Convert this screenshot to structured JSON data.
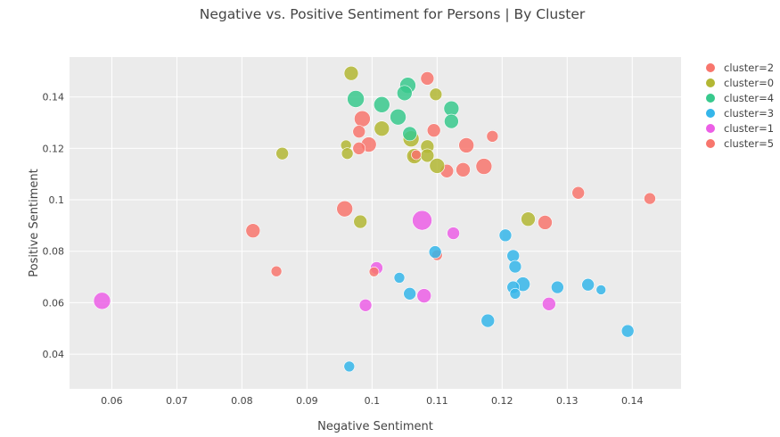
{
  "chart_data": {
    "type": "scatter",
    "title": "Negative vs. Positive Sentiment for Persons | By Cluster",
    "xlabel": "Negative Sentiment",
    "ylabel": "Positive Sentiment",
    "xlim": [
      0.0535,
      0.1475
    ],
    "ylim": [
      0.0265,
      0.1555
    ],
    "x_ticks": [
      0.06,
      0.07,
      0.08,
      0.09,
      0.1,
      0.11,
      0.12,
      0.13,
      0.14
    ],
    "x_tick_labels": [
      "0.06",
      "0.07",
      "0.08",
      "0.09",
      "0.1",
      "0.11",
      "0.12",
      "0.13",
      "0.14"
    ],
    "y_ticks": [
      0.04,
      0.06,
      0.08,
      0.1,
      0.12,
      0.14
    ],
    "y_tick_labels": [
      "0.04",
      "0.06",
      "0.08",
      "0.1",
      "0.12",
      "0.14"
    ],
    "grid": true,
    "legend_position": "right",
    "series": [
      {
        "name": "cluster=2",
        "color": "#f8766d",
        "points": [
          {
            "x": 0.1085,
            "y": 0.1472,
            "size": 15
          },
          {
            "x": 0.0985,
            "y": 0.1315,
            "size": 18
          },
          {
            "x": 0.098,
            "y": 0.1265,
            "size": 14
          },
          {
            "x": 0.0995,
            "y": 0.1215,
            "size": 17
          },
          {
            "x": 0.098,
            "y": 0.12,
            "size": 14
          },
          {
            "x": 0.1095,
            "y": 0.127,
            "size": 15
          },
          {
            "x": 0.1185,
            "y": 0.1247,
            "size": 13
          },
          {
            "x": 0.1145,
            "y": 0.1212,
            "size": 17
          },
          {
            "x": 0.1115,
            "y": 0.1112,
            "size": 15
          },
          {
            "x": 0.114,
            "y": 0.1117,
            "size": 16
          },
          {
            "x": 0.1172,
            "y": 0.113,
            "size": 18
          },
          {
            "x": 0.1065,
            "y": 0.117,
            "size": 13
          },
          {
            "x": 0.0958,
            "y": 0.0965,
            "size": 18
          },
          {
            "x": 0.0817,
            "y": 0.088,
            "size": 16
          },
          {
            "x": 0.1317,
            "y": 0.1027,
            "size": 14
          },
          {
            "x": 0.1427,
            "y": 0.1005,
            "size": 13
          },
          {
            "x": 0.1266,
            "y": 0.0912,
            "size": 16
          },
          {
            "x": 0.11,
            "y": 0.0785,
            "size": 12
          },
          {
            "x": 0.0853,
            "y": 0.0722,
            "size": 12
          }
        ]
      },
      {
        "name": "cluster=0",
        "color": "#b3b734",
        "points": [
          {
            "x": 0.0968,
            "y": 0.1492,
            "size": 16
          },
          {
            "x": 0.1098,
            "y": 0.141,
            "size": 14
          },
          {
            "x": 0.1015,
            "y": 0.1277,
            "size": 17
          },
          {
            "x": 0.106,
            "y": 0.1237,
            "size": 18
          },
          {
            "x": 0.1085,
            "y": 0.1207,
            "size": 15
          },
          {
            "x": 0.1065,
            "y": 0.117,
            "size": 17
          },
          {
            "x": 0.1085,
            "y": 0.1172,
            "size": 15
          },
          {
            "x": 0.11,
            "y": 0.1132,
            "size": 17
          },
          {
            "x": 0.096,
            "y": 0.1212,
            "size": 12
          },
          {
            "x": 0.0962,
            "y": 0.118,
            "size": 13
          },
          {
            "x": 0.0862,
            "y": 0.118,
            "size": 14
          },
          {
            "x": 0.0982,
            "y": 0.0915,
            "size": 15
          },
          {
            "x": 0.124,
            "y": 0.0925,
            "size": 16
          }
        ]
      },
      {
        "name": "cluster=4",
        "color": "#38c98d",
        "points": [
          {
            "x": 0.1055,
            "y": 0.1445,
            "size": 18
          },
          {
            "x": 0.105,
            "y": 0.1415,
            "size": 17
          },
          {
            "x": 0.0975,
            "y": 0.1392,
            "size": 19
          },
          {
            "x": 0.1015,
            "y": 0.137,
            "size": 18
          },
          {
            "x": 0.104,
            "y": 0.1322,
            "size": 18
          },
          {
            "x": 0.1122,
            "y": 0.1355,
            "size": 17
          },
          {
            "x": 0.1122,
            "y": 0.1305,
            "size": 16
          },
          {
            "x": 0.1058,
            "y": 0.1257,
            "size": 16
          }
        ]
      },
      {
        "name": "cluster=3",
        "color": "#35b6ea",
        "points": [
          {
            "x": 0.1205,
            "y": 0.0862,
            "size": 14
          },
          {
            "x": 0.1217,
            "y": 0.0782,
            "size": 14
          },
          {
            "x": 0.122,
            "y": 0.074,
            "size": 14
          },
          {
            "x": 0.1097,
            "y": 0.0797,
            "size": 14
          },
          {
            "x": 0.1232,
            "y": 0.0672,
            "size": 16
          },
          {
            "x": 0.1217,
            "y": 0.066,
            "size": 14
          },
          {
            "x": 0.122,
            "y": 0.0635,
            "size": 12
          },
          {
            "x": 0.1285,
            "y": 0.066,
            "size": 14
          },
          {
            "x": 0.1332,
            "y": 0.067,
            "size": 14
          },
          {
            "x": 0.1352,
            "y": 0.065,
            "size": 11
          },
          {
            "x": 0.1058,
            "y": 0.0635,
            "size": 14
          },
          {
            "x": 0.1042,
            "y": 0.0697,
            "size": 12
          },
          {
            "x": 0.1178,
            "y": 0.053,
            "size": 15
          },
          {
            "x": 0.1393,
            "y": 0.049,
            "size": 14
          },
          {
            "x": 0.0965,
            "y": 0.0352,
            "size": 12
          }
        ]
      },
      {
        "name": "cluster=1",
        "color": "#ec5fe6",
        "points": [
          {
            "x": 0.1077,
            "y": 0.092,
            "size": 22
          },
          {
            "x": 0.1125,
            "y": 0.087,
            "size": 14
          },
          {
            "x": 0.1007,
            "y": 0.0735,
            "size": 14
          },
          {
            "x": 0.108,
            "y": 0.0627,
            "size": 16
          },
          {
            "x": 0.099,
            "y": 0.059,
            "size": 14
          },
          {
            "x": 0.1272,
            "y": 0.0595,
            "size": 15
          },
          {
            "x": 0.0585,
            "y": 0.0607,
            "size": 19
          }
        ]
      },
      {
        "name": "cluster=5",
        "color": "#f8766d",
        "points": [
          {
            "x": 0.1003,
            "y": 0.072,
            "size": 11
          },
          {
            "x": 0.1068,
            "y": 0.1175,
            "size": 11
          }
        ]
      }
    ]
  }
}
